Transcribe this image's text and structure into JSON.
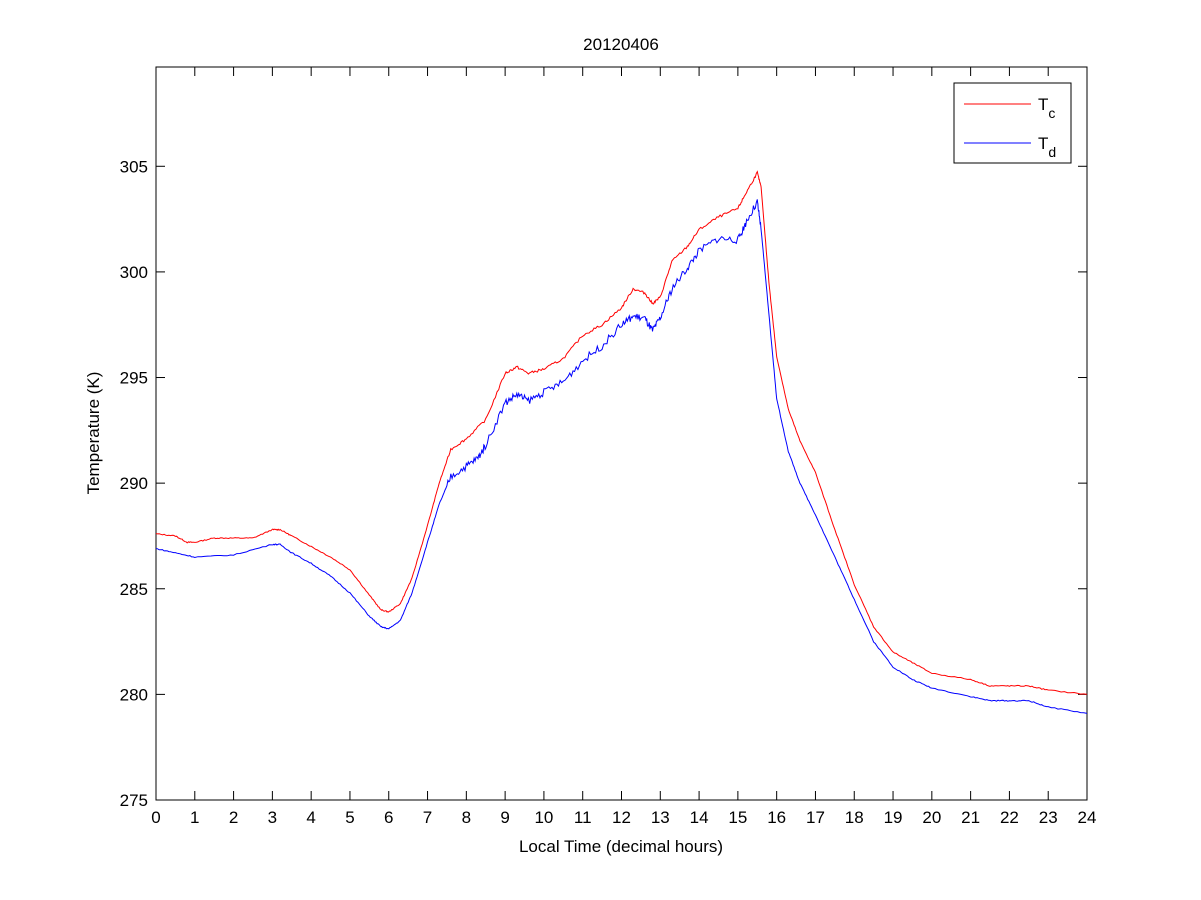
{
  "chart_data": {
    "type": "line",
    "title": "20120406",
    "xlabel": "Local Time (decimal hours)",
    "ylabel": "Temperature (K)",
    "xlim": [
      0,
      24
    ],
    "ylim": [
      275,
      309.7
    ],
    "xticks": [
      "0",
      "1",
      "2",
      "3",
      "4",
      "5",
      "6",
      "7",
      "8",
      "9",
      "10",
      "11",
      "12",
      "13",
      "14",
      "15",
      "16",
      "17",
      "18",
      "19",
      "20",
      "21",
      "22",
      "23",
      "24"
    ],
    "yticks": [
      "275",
      "280",
      "285",
      "290",
      "295",
      "300",
      "305"
    ],
    "grid": false,
    "legend_position": "top-right",
    "series": [
      {
        "name": "T",
        "subscript": "c",
        "color": "#ff0000",
        "x": [
          0,
          0.5,
          0.8,
          1,
          1.5,
          2,
          2.5,
          3,
          3.2,
          3.5,
          4,
          4.5,
          5,
          5.5,
          5.8,
          6,
          6.3,
          6.6,
          7,
          7.3,
          7.6,
          8,
          8.5,
          9,
          9.3,
          9.6,
          10,
          10.5,
          11,
          11.5,
          12,
          12.3,
          12.6,
          12.8,
          13,
          13.3,
          13.7,
          14,
          14.5,
          15,
          15.2,
          15.5,
          15.6,
          15.8,
          16,
          16.3,
          16.6,
          17,
          17.5,
          18,
          18.5,
          19,
          19.5,
          20,
          21,
          21.5,
          22,
          22.5,
          23,
          24
        ],
        "y": [
          287.6,
          287.5,
          287.2,
          287.2,
          287.4,
          287.4,
          287.4,
          287.8,
          287.8,
          287.5,
          287.0,
          286.5,
          285.9,
          284.7,
          284.0,
          283.9,
          284.3,
          285.5,
          288.0,
          290.0,
          291.6,
          292.1,
          293.0,
          295.2,
          295.5,
          295.2,
          295.4,
          295.9,
          297.0,
          297.5,
          298.3,
          299.2,
          299.0,
          298.5,
          298.8,
          300.5,
          301.2,
          302.0,
          302.6,
          303.0,
          303.7,
          304.7,
          304.0,
          299.5,
          296.0,
          293.5,
          292.0,
          290.5,
          287.8,
          285.2,
          283.2,
          282.0,
          281.5,
          281.0,
          280.7,
          280.4,
          280.4,
          280.4,
          280.2,
          280.0
        ]
      },
      {
        "name": "T",
        "subscript": "d",
        "color": "#0000ff",
        "x": [
          0,
          0.5,
          1,
          2,
          3,
          3.2,
          3.5,
          4,
          4.5,
          5,
          5.5,
          5.8,
          6,
          6.3,
          6.6,
          7,
          7.3,
          7.6,
          8,
          8.3,
          8.5,
          9,
          9.3,
          9.6,
          10,
          10.5,
          11,
          11.5,
          12,
          12.3,
          12.6,
          12.8,
          13,
          13.3,
          13.7,
          14,
          14.5,
          15,
          15.2,
          15.5,
          15.6,
          15.8,
          16,
          16.3,
          16.6,
          17,
          17.5,
          18,
          18.5,
          19,
          19.5,
          20,
          21,
          21.5,
          22,
          22.5,
          23,
          24
        ],
        "y": [
          286.9,
          286.7,
          286.5,
          286.6,
          287.1,
          287.1,
          286.7,
          286.2,
          285.6,
          284.8,
          283.7,
          283.2,
          283.1,
          283.5,
          284.8,
          287.2,
          289.0,
          290.3,
          290.8,
          291.2,
          291.8,
          293.8,
          294.2,
          293.9,
          294.3,
          294.8,
          295.8,
          296.5,
          297.5,
          297.9,
          297.8,
          297.2,
          297.8,
          299.2,
          300.2,
          301.0,
          301.6,
          301.5,
          302.3,
          303.3,
          302.0,
          298.0,
          294.0,
          291.5,
          290.0,
          288.5,
          286.5,
          284.5,
          282.5,
          281.3,
          280.7,
          280.3,
          279.9,
          279.7,
          279.7,
          279.7,
          279.4,
          279.1
        ]
      }
    ]
  }
}
